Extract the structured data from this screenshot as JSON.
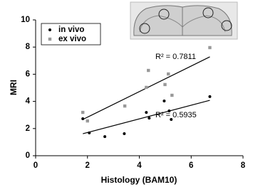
{
  "chart_data": {
    "type": "scatter",
    "x_label": "Histology (BAM10)",
    "y_label": "MRI",
    "xlim": [
      0,
      8
    ],
    "xticks": [
      0,
      2,
      4,
      6,
      8
    ],
    "ylim": [
      0,
      10
    ],
    "yticks": [
      0,
      2,
      4,
      6,
      8,
      10
    ],
    "series": [
      {
        "name": "in vivo",
        "color": "#000000",
        "marker": "circle",
        "x": [
          1.82,
          2.07,
          2.67,
          3.42,
          4.27,
          4.38,
          4.96,
          5.15,
          5.23,
          6.72
        ],
        "values": [
          2.72,
          1.68,
          1.41,
          1.62,
          3.19,
          2.77,
          4.03,
          3.3,
          2.67,
          4.35
        ],
        "trendline": {
          "x": [
            1.82,
            6.72
          ],
          "values": [
            1.62,
            4.08
          ]
        },
        "r2_label": "R² = 0.5935"
      },
      {
        "name": "ex vivo",
        "color": "#999999",
        "marker": "square",
        "x": [
          1.82,
          2.0,
          3.44,
          4.35,
          4.27,
          4.99,
          5.12,
          5.26,
          6.72
        ],
        "values": [
          3.19,
          2.56,
          3.66,
          6.28,
          5.03,
          5.24,
          6.02,
          4.45,
          7.96
        ],
        "trendline": {
          "x": [
            1.82,
            6.72
          ],
          "values": [
            2.67,
            7.28
          ]
        },
        "r2_label": "R² = 0.7811"
      }
    ]
  }
}
